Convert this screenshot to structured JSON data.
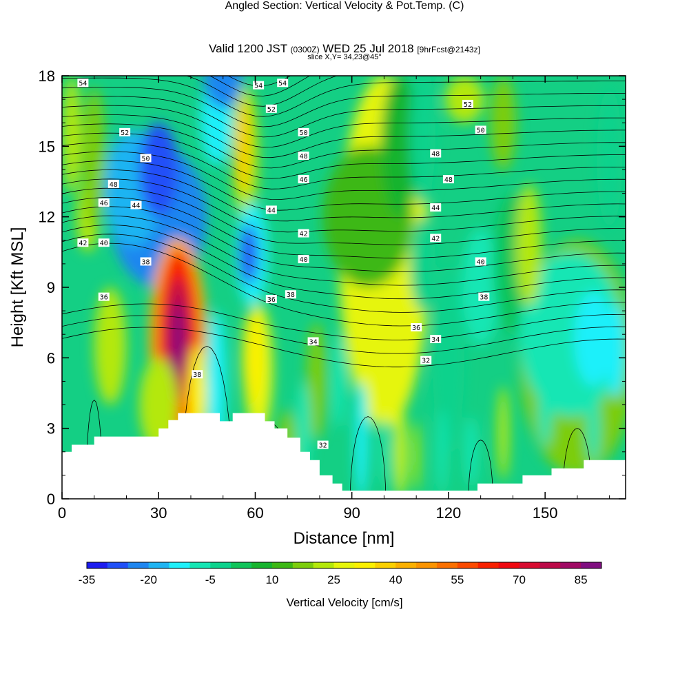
{
  "header": {
    "title_main": "Angled Section: Vertical Velocity & Pot.Temp.",
    "title_suffix": "(C)",
    "valid_prefix": "Valid 1200 JST",
    "valid_utc": "(0300Z)",
    "valid_date": "WED 25 Jul 2018",
    "forecast": "[9hrFcst@2143z]",
    "slice": "slice X,Y= 34,23@45°"
  },
  "chart_data": {
    "type": "heatmap",
    "xlabel": "Distance [nm]",
    "ylabel": "Height [Kft MSL]",
    "xlim": [
      0,
      175
    ],
    "ylim": [
      0,
      18
    ],
    "x_ticks": [
      0,
      30,
      60,
      90,
      120,
      150
    ],
    "y_ticks": [
      0,
      3,
      6,
      9,
      12,
      15,
      18
    ],
    "colorbar": {
      "title": "Vertical Velocity [cm/s]",
      "min": -35,
      "max": 90,
      "step": 5,
      "tick_labels": [
        "-35",
        "-20",
        "-5",
        "10",
        "25",
        "40",
        "55",
        "70",
        "85"
      ],
      "colors": [
        "#1c1cf0",
        "#2050f8",
        "#1e86f0",
        "#1eb4f2",
        "#1ef0fa",
        "#14e6b4",
        "#0cd28c",
        "#10c45a",
        "#16b42e",
        "#3cb814",
        "#7ccd0c",
        "#b4e80a",
        "#e6f50a",
        "#fcf000",
        "#fcd000",
        "#fcb000",
        "#fc9400",
        "#fc7000",
        "#fc4a00",
        "#f82000",
        "#f00810",
        "#d80c30",
        "#bc0a48",
        "#a00a64",
        "#800e80"
      ]
    },
    "terrain_profile": [
      [
        0,
        2.0
      ],
      [
        3,
        2.0
      ],
      [
        3,
        2.3
      ],
      [
        10,
        2.3
      ],
      [
        10,
        2.65
      ],
      [
        20,
        2.65
      ],
      [
        20,
        2.65
      ],
      [
        30,
        2.65
      ],
      [
        30,
        3.0
      ],
      [
        33,
        3.0
      ],
      [
        33,
        3.35
      ],
      [
        36,
        3.35
      ],
      [
        36,
        3.65
      ],
      [
        49,
        3.65
      ],
      [
        49,
        3.3
      ],
      [
        53,
        3.3
      ],
      [
        53,
        3.65
      ],
      [
        63,
        3.65
      ],
      [
        63,
        3.3
      ],
      [
        66,
        3.3
      ],
      [
        66,
        3.0
      ],
      [
        70,
        3.0
      ],
      [
        70,
        2.6
      ],
      [
        74,
        2.6
      ],
      [
        74,
        2.0
      ],
      [
        77,
        2.0
      ],
      [
        77,
        1.65
      ],
      [
        80,
        1.65
      ],
      [
        80,
        1.0
      ],
      [
        84,
        1.0
      ],
      [
        84,
        0.65
      ],
      [
        87,
        0.65
      ],
      [
        87,
        0.35
      ],
      [
        90,
        0.35
      ],
      [
        90,
        0.35
      ],
      [
        129,
        0.35
      ],
      [
        129,
        0.65
      ],
      [
        143,
        0.65
      ],
      [
        143,
        1.0
      ],
      [
        152,
        1.0
      ],
      [
        152,
        1.3
      ],
      [
        162,
        1.3
      ],
      [
        162,
        1.65
      ],
      [
        175,
        1.65
      ]
    ],
    "isentrope_labels": [
      {
        "text": "54",
        "x": 6.5,
        "y": 17.7
      },
      {
        "text": "54",
        "x": 61,
        "y": 17.6
      },
      {
        "text": "54",
        "x": 68.5,
        "y": 17.7
      },
      {
        "text": "52",
        "x": 65,
        "y": 16.6
      },
      {
        "text": "52",
        "x": 126,
        "y": 16.8
      },
      {
        "text": "52",
        "x": 19.5,
        "y": 15.6
      },
      {
        "text": "50",
        "x": 75,
        "y": 15.6
      },
      {
        "text": "50",
        "x": 130,
        "y": 15.7
      },
      {
        "text": "50",
        "x": 26,
        "y": 14.5
      },
      {
        "text": "48",
        "x": 75,
        "y": 14.6
      },
      {
        "text": "48",
        "x": 116,
        "y": 14.7
      },
      {
        "text": "48",
        "x": 16,
        "y": 13.4
      },
      {
        "text": "48",
        "x": 120,
        "y": 13.6
      },
      {
        "text": "46",
        "x": 75,
        "y": 13.6
      },
      {
        "text": "46",
        "x": 13,
        "y": 12.6
      },
      {
        "text": "44",
        "x": 23,
        "y": 12.5
      },
      {
        "text": "44",
        "x": 65,
        "y": 12.3
      },
      {
        "text": "44",
        "x": 116,
        "y": 12.4
      },
      {
        "text": "42",
        "x": 75,
        "y": 11.3
      },
      {
        "text": "42",
        "x": 116,
        "y": 11.1
      },
      {
        "text": "42",
        "x": 6.5,
        "y": 10.9
      },
      {
        "text": "40",
        "x": 13,
        "y": 10.9
      },
      {
        "text": "40",
        "x": 75,
        "y": 10.2
      },
      {
        "text": "40",
        "x": 130,
        "y": 10.1
      },
      {
        "text": "38",
        "x": 26,
        "y": 10.1
      },
      {
        "text": "38",
        "x": 71,
        "y": 8.7
      },
      {
        "text": "38",
        "x": 131,
        "y": 8.6
      },
      {
        "text": "38",
        "x": 42,
        "y": 5.3
      },
      {
        "text": "36",
        "x": 13,
        "y": 8.6
      },
      {
        "text": "36",
        "x": 65,
        "y": 8.5
      },
      {
        "text": "36",
        "x": 110,
        "y": 7.3
      },
      {
        "text": "34",
        "x": 78,
        "y": 6.7
      },
      {
        "text": "34",
        "x": 116,
        "y": 6.8
      },
      {
        "text": "32",
        "x": 113,
        "y": 5.9
      },
      {
        "text": "32",
        "x": 81,
        "y": 2.3
      }
    ]
  }
}
